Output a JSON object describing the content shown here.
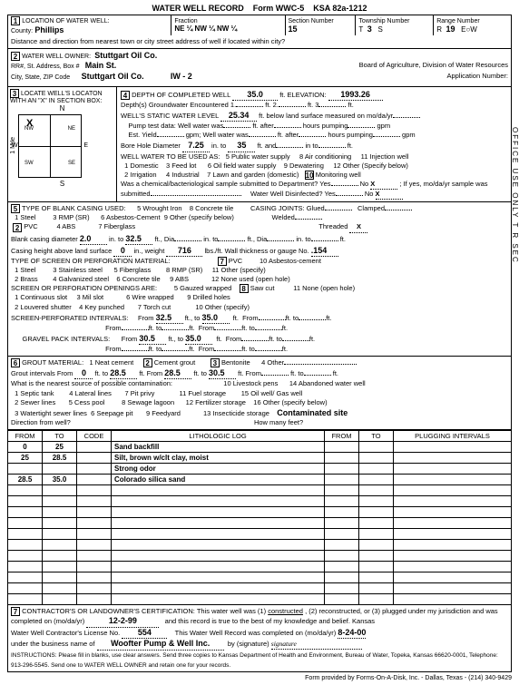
{
  "form": {
    "title": "WATER WELL RECORD",
    "code": "Form WWC-5",
    "ksa": "KSA 82a-1212"
  },
  "loc": {
    "county": "Phillips",
    "fraction": "NE ¼  NW ¼  NW ¼",
    "section": "15",
    "township": "3",
    "range_dir": "S",
    "range": "19",
    "range_ew": "E"
  },
  "owner": {
    "name": "Stuttgart Oil Co.",
    "addr": "Main St.",
    "city": "Stuttgart Oil Co.",
    "iw": "IW - 2",
    "board": "Board of Agriculture, Division of Water Resources",
    "appno": "Application Number:"
  },
  "s3": {
    "label": "LOCATE WELL'S LOCATON WITH AN \"X\" IN SECTION BOX:",
    "n": "N",
    "s": "S",
    "w": "W",
    "e": "E",
    "mile": "1 Mile",
    "x": "X",
    "nw": "NW",
    "ne": "NE",
    "sw": "SW",
    "se": "SE"
  },
  "s4": {
    "depth_lbl": "DEPTH OF COMPLETED WELL",
    "depth": "35.0",
    "elev_lbl": "ft. ELEVATION:",
    "elev": "1993.26",
    "gw": "Depth(s) Groundwater Encountered   1.",
    "gw2": "ft.  2.",
    "gw3": "ft.   3",
    "gw4": "ft.",
    "swl_lbl": "WELL'S STATIC WATER LEVEL",
    "swl": "25.34",
    "swl2": "ft. below land surface measured on mo/da/yr",
    "pump": "Pump test data:   Well water was",
    "pump2": "ft. after",
    "pump3": "hours pumping",
    "pump4": "gpm",
    "est": "Est. Yield",
    "est2": "gpm;   Well water was",
    "bore_lbl": "Bore Hole Diameter",
    "bore": "7.25",
    "bore2": "in. to",
    "bore3": "35",
    "bore4": "ft. and",
    "bore5": "in to",
    "bore6": "ft.",
    "use": "WELL WATER TO BE USED AS:",
    "u5": "5  Public water supply",
    "u8": "8  Air conditioning",
    "u11": "11  Injection well",
    "u1": "1  Domestic",
    "u3": "3  Feed lot",
    "u6": "6  Oil field water supply",
    "u9": "9  Dewatering",
    "u12": "12  Other (Specify below)",
    "u2": "2  Irrigation",
    "u4": "4  Industrial",
    "u7": "7  Lawn and garden (domestic)",
    "u10": "Monitoring well",
    "u10n": "10",
    "chem": "Was a chemical/bacteriological sample submitted to Department?  Yes",
    "no": "No",
    "x": "X",
    "if": "; If yes, mo/da/yr sample was",
    "sub": "submitted",
    "dis": "Water Well Disinfected?  Yes",
    "no2": "No"
  },
  "s5": {
    "title": "TYPE OF BLANK CASING USED:",
    "c1": "1  Steel",
    "c3": "3  RMP (SR)",
    "c5": "5  Wrought Iron",
    "c8": "8  Concrete tile",
    "cj": "CASING JOINTS:  Glued",
    "clamp": "Clamped",
    "c2n": "2",
    "c2": "PVC",
    "c4": "4  ABS",
    "c6": "6  Asbestos-Cement",
    "c9": "9  Other (specify below)",
    "weld": "Welded",
    "c7": "7  Fiberglass",
    "thr": "Threaded",
    "x": "X",
    "bcd": "Blank casing diameter",
    "bcd_v": "2.0",
    "bcd_to": "in. to",
    "bcd_to_v": "32.5",
    "bcd_ft": "ft., Dia",
    "bcd_in": "in. to",
    "bcd_ft2": "ft., Dia",
    "bcd_in2": "in. to",
    "bcd_ft3": "ft.",
    "cha": "Casing height above land surface",
    "cha_v": "0",
    "cha_in": "in., weight",
    "cha_w": "716",
    "cha_lbs": "lbs./ft.  Wall thickness or gauge No.",
    "cha_g": ".154",
    "scr": "TYPE OF SCREEN OR PERFORATION MATERIAL:",
    "p7n": "7",
    "p7": "PVC",
    "p10": "10  Asbestos-cement",
    "p1": "1  Steel",
    "p3": "3  Stainless steel",
    "p5": "5  Fiberglass",
    "p8": "8  RMP (SR)",
    "p11": "11  Other (specify)",
    "p2": "2  Brass",
    "p4": "4  Galvanized steel",
    "p6": "6  Concrete tile",
    "p9": "9  ABS",
    "p12": "12  None used (open hole)",
    "spo": "SCREEN OR PERFORATION OPENINGS ARE:",
    "o5": "5  Gauzed wrapped",
    "o8n": "8",
    "o8": "Saw cut",
    "o11": "11  None (open hole)",
    "o1": "1  Continuous slot",
    "o3": "3  Mil slot",
    "o6": "6  Wire wrapped",
    "o9": "9  Drilled holes",
    "o2": "2  Louvered shutter",
    "o4": "4  Key punched",
    "o7": "7  Torch cut",
    "o10": "10  Other (specify)",
    "spi": "SCREEN-PERFORATED INTERVALS:",
    "from": "From",
    "to": "ft., to",
    "fv1": "32.5",
    "tv1": "35.0",
    "gpi": "GRAVEL PACK INTERVALS:",
    "gf1": "30.5",
    "gt1": "35.0"
  },
  "s6": {
    "title": "GROUT MATERIAL:",
    "g1": "1  Neat cement",
    "g2n": "2",
    "g2": "Cement grout",
    "g3n": "3",
    "g3": "Bentonite",
    "g4": "4  Other",
    "gi": "Grout intervals   From",
    "gi_f1": "0",
    "gi_to": "ft. to",
    "gi_t1": "28.5",
    "gi_ft": "ft.   From",
    "gi_f2": "28.5",
    "gi_t2": "30.5",
    "gi_ft2": "ft.   From",
    "gi_ft3": "ft. to",
    "gi_ft4": "ft.",
    "src": "What is the nearest source of possible contamination:",
    "r10": "10  Livestock pens",
    "r14": "14  Abandoned water well",
    "r1": "1  Septic tank",
    "r4": "4  Lateral lines",
    "r7": "7  Pit privy",
    "r11": "11  Fuel storage",
    "r15": "15  Oil well/ Gas well",
    "r2": "2  Sewer lines",
    "r5": "5  Cess pool",
    "r8": "8  Sewage lagoon",
    "r12": "12  Fertilizer storage",
    "r16": "16  Other (specify below)",
    "r3": "3  Watertight sewer lines",
    "r6": "6  Seepage pit",
    "r9": "9  Feedyard",
    "r13": "13  Insecticide storage",
    "contam": "Contaminated site",
    "dir": "Direction from well?",
    "hmf": "How many feet?"
  },
  "log": {
    "h_from": "FROM",
    "h_to": "TO",
    "h_code": "CODE",
    "h_lith": "LITHOLOGIC LOG",
    "h_from2": "FROM",
    "h_to2": "TO",
    "h_plug": "PLUGGING INTERVALS",
    "rows": [
      {
        "f": "0",
        "t": "25",
        "d": "Sand backfill"
      },
      {
        "f": "25",
        "t": "28.5",
        "d": "Silt, brown w/clt clay, moist"
      },
      {
        "f": "",
        "t": "",
        "d": "Strong odor"
      },
      {
        "f": "28.5",
        "t": "35.0",
        "d": "Colorado silica sand"
      }
    ]
  },
  "s7": {
    "cert": "CONTRACTOR'S OR LANDOWNER'S CERTIFICATION: This water well was (1)",
    "constructed": "constructed",
    "cert2": ", (2) reconstructed, or (3) plugged under my jurisdiction and was",
    "comp": "completed on (mo/da/yr)",
    "comp_v": "12-2-99",
    "comp2": "and this record is true to the best of my knowledge and belief.  Kansas",
    "lic": "Water Well Contractor's License No.",
    "lic_v": "554",
    "lic2": "This Water Well Record was completed on (mo/da/yr)",
    "lic_d": "8-24-00",
    "bus": "under the business name of",
    "bus_v": "Woofter Pump & Well Inc.",
    "sig": "by (signature)",
    "instr": "INSTRUCTIONS: Please fill in blanks, use clear answers.  Send three copies to Kansas Department of Health and Environment, Bureau of Water, Topeka, Kansas 66620-0001, Telephone: 913-296-5545.  Send one to WATER WELL OWNER and retain one for your records.",
    "foot": "Form provided by Forms-On-A-Disk, Inc. - Dallas, Texas -   (214) 340-9429"
  },
  "side": "OFFICE USE ONLY          T          R          SEC"
}
